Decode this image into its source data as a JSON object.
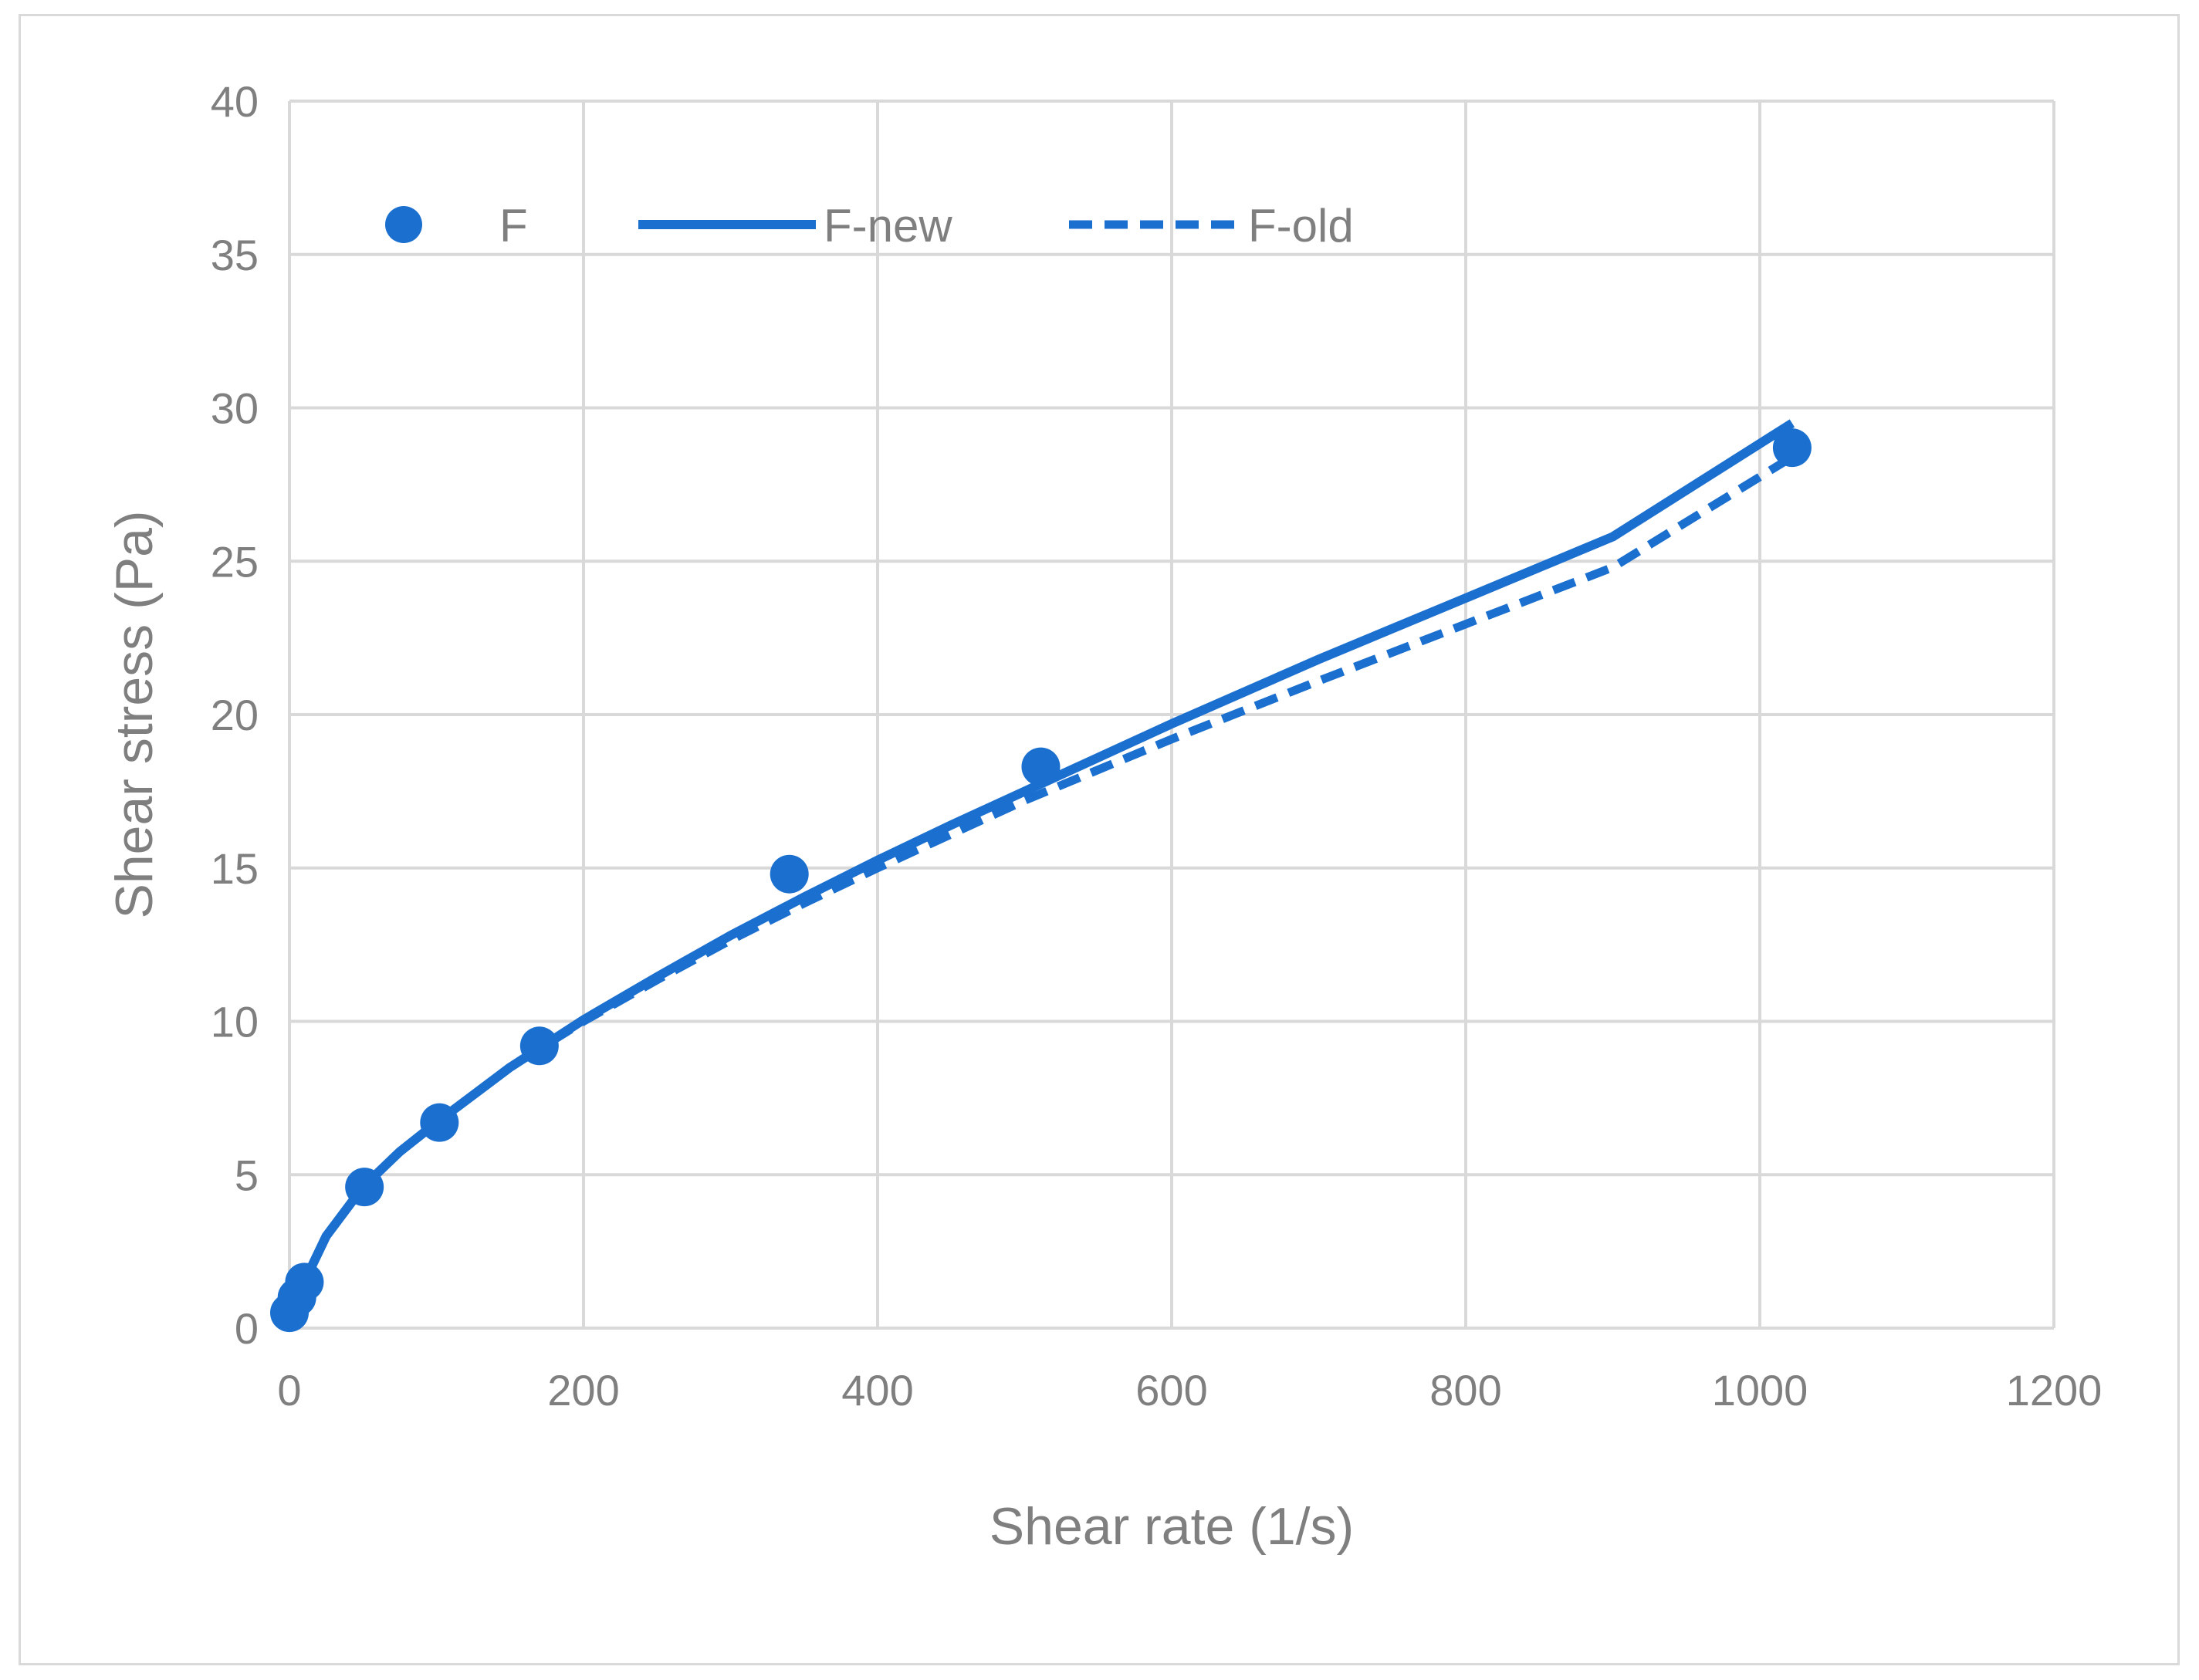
{
  "chart_data": {
    "type": "scatter",
    "title": "",
    "xlabel": "Shear rate (1/s)",
    "ylabel": "Shear stress (Pa)",
    "xlim": [
      0,
      1200
    ],
    "ylim": [
      0,
      40
    ],
    "xticks": [
      "0",
      "200",
      "400",
      "600",
      "800",
      "1000",
      "1200"
    ],
    "yticks": [
      "0",
      "5",
      "10",
      "15",
      "20",
      "25",
      "30",
      "35",
      "40"
    ],
    "grid": true,
    "legend_position": "top-left-inside",
    "colors": {
      "series": "#1a6fcf",
      "grid": "#d9d9d9",
      "text": "#7f7f7f"
    },
    "series": [
      {
        "name": "F",
        "style": "markers",
        "x": [
          0,
          5.1,
          10.2,
          51,
          102,
          170,
          340,
          511,
          1022
        ],
        "y": [
          0.5,
          1.0,
          1.5,
          4.6,
          6.7,
          9.2,
          14.8,
          18.3,
          28.7
        ]
      },
      {
        "name": "F-new",
        "style": "solid",
        "x": [
          0,
          5,
          10,
          25,
          50,
          75,
          100,
          150,
          200,
          250,
          300,
          350,
          400,
          450,
          500,
          600,
          700,
          800,
          900,
          1022
        ],
        "y": [
          0.3,
          0.95,
          1.5,
          3.0,
          4.6,
          5.75,
          6.7,
          8.5,
          10.05,
          11.45,
          12.8,
          14.05,
          15.25,
          16.4,
          17.5,
          19.7,
          21.8,
          23.8,
          25.8,
          29.5
        ]
      },
      {
        "name": "F-old",
        "style": "dashed",
        "x": [
          0,
          5,
          10,
          25,
          50,
          75,
          100,
          150,
          200,
          250,
          300,
          350,
          400,
          450,
          500,
          600,
          700,
          800,
          900,
          1022
        ],
        "y": [
          0.3,
          0.95,
          1.5,
          3.0,
          4.6,
          5.75,
          6.7,
          8.5,
          10.0,
          11.35,
          12.65,
          13.85,
          15.0,
          16.1,
          17.2,
          19.2,
          21.1,
          22.95,
          24.8,
          28.4
        ]
      }
    ]
  }
}
